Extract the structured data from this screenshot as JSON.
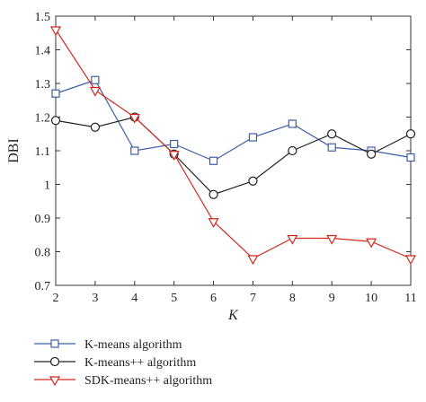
{
  "chart_data": {
    "type": "line",
    "title": "",
    "xlabel": "K",
    "ylabel": "DBI",
    "x": [
      2,
      3,
      4,
      5,
      6,
      7,
      8,
      9,
      10,
      11
    ],
    "xlim": [
      2,
      11
    ],
    "ylim": [
      0.7,
      1.5
    ],
    "yticks": [
      "0.7",
      "0.8",
      "0.9",
      "1",
      "1.1",
      "1.2",
      "1.3",
      "1.4",
      "1.5"
    ],
    "xticks": [
      "2",
      "3",
      "4",
      "5",
      "6",
      "7",
      "8",
      "9",
      "10",
      "11"
    ],
    "grid": false,
    "legend_position": "bottom",
    "series": [
      {
        "name": "K-means algorithm",
        "color": "#3a5fa8",
        "marker": "square",
        "values": [
          1.27,
          1.31,
          1.1,
          1.12,
          1.07,
          1.14,
          1.18,
          1.11,
          1.1,
          1.08
        ]
      },
      {
        "name": "K-means++ algorithm",
        "color": "#222222",
        "marker": "circle",
        "values": [
          1.19,
          1.17,
          1.2,
          1.09,
          0.97,
          1.01,
          1.1,
          1.15,
          1.09,
          1.15
        ]
      },
      {
        "name": "SDK-means++ algorithm",
        "color": "#d0281e",
        "marker": "triangle-down",
        "values": [
          1.46,
          1.28,
          1.2,
          1.09,
          0.89,
          0.78,
          0.84,
          0.84,
          0.83,
          0.78
        ]
      }
    ]
  }
}
